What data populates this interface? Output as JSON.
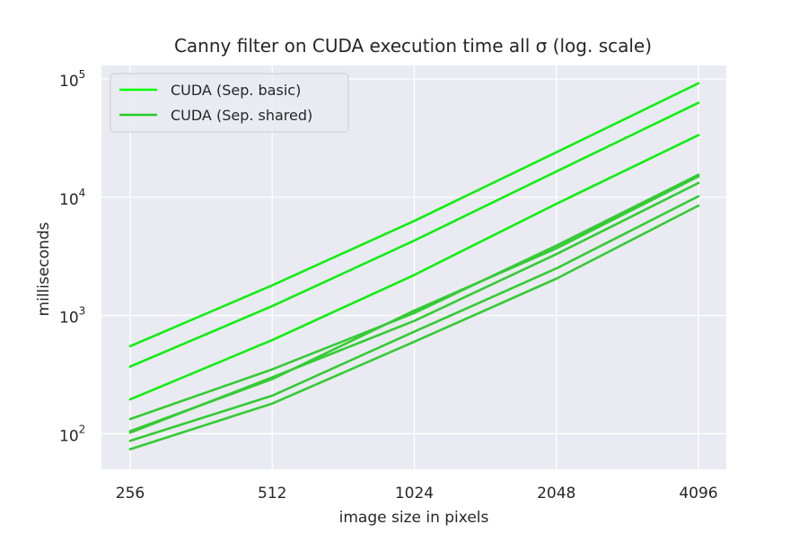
{
  "chart_data": {
    "type": "line",
    "title": "Canny filter on CUDA execution time all σ (log. scale)",
    "xlabel": "image size in pixels",
    "ylabel": "milliseconds",
    "categories": [
      "256",
      "512",
      "1024",
      "2048",
      "4096"
    ],
    "y_scale": "log",
    "ylim": [
      50,
      130000
    ],
    "y_ticks": [
      {
        "base": "10",
        "exp": "2",
        "value": 100
      },
      {
        "base": "10",
        "exp": "3",
        "value": 1000
      },
      {
        "base": "10",
        "exp": "4",
        "value": 10000
      },
      {
        "base": "10",
        "exp": "5",
        "value": 100000
      }
    ],
    "grid": true,
    "legend": {
      "placement": "top-left",
      "entries": [
        {
          "label": "CUDA (Sep. basic)",
          "color": "#00ff00"
        },
        {
          "label": "CUDA (Sep. shared)",
          "color": "#22cc22"
        }
      ]
    },
    "series": [
      {
        "group": "basic",
        "color": "#11ee11",
        "values": [
          550,
          1800,
          6300,
          24000,
          92000
        ]
      },
      {
        "group": "basic",
        "color": "#11ee11",
        "values": [
          370,
          1200,
          4300,
          16500,
          63000
        ]
      },
      {
        "group": "basic",
        "color": "#11ee11",
        "values": [
          195,
          620,
          2200,
          8800,
          33500
        ]
      },
      {
        "group": "shared",
        "color": "#33cc33",
        "values": [
          133,
          350,
          1050,
          3900,
          15500
        ]
      },
      {
        "group": "shared",
        "color": "#33cc33",
        "values": [
          105,
          290,
          1100,
          3700,
          15000
        ]
      },
      {
        "group": "shared",
        "color": "#33cc33",
        "values": [
          102,
          300,
          900,
          3300,
          13200
        ]
      },
      {
        "group": "shared",
        "color": "#33cc33",
        "values": [
          87,
          210,
          730,
          2500,
          10200
        ]
      },
      {
        "group": "shared",
        "color": "#33cc33",
        "values": [
          74,
          180,
          600,
          2050,
          8500
        ]
      }
    ],
    "colors": {
      "plot_background": "#eaeaf2",
      "grid": "#ffffff",
      "text": "#262626"
    }
  }
}
